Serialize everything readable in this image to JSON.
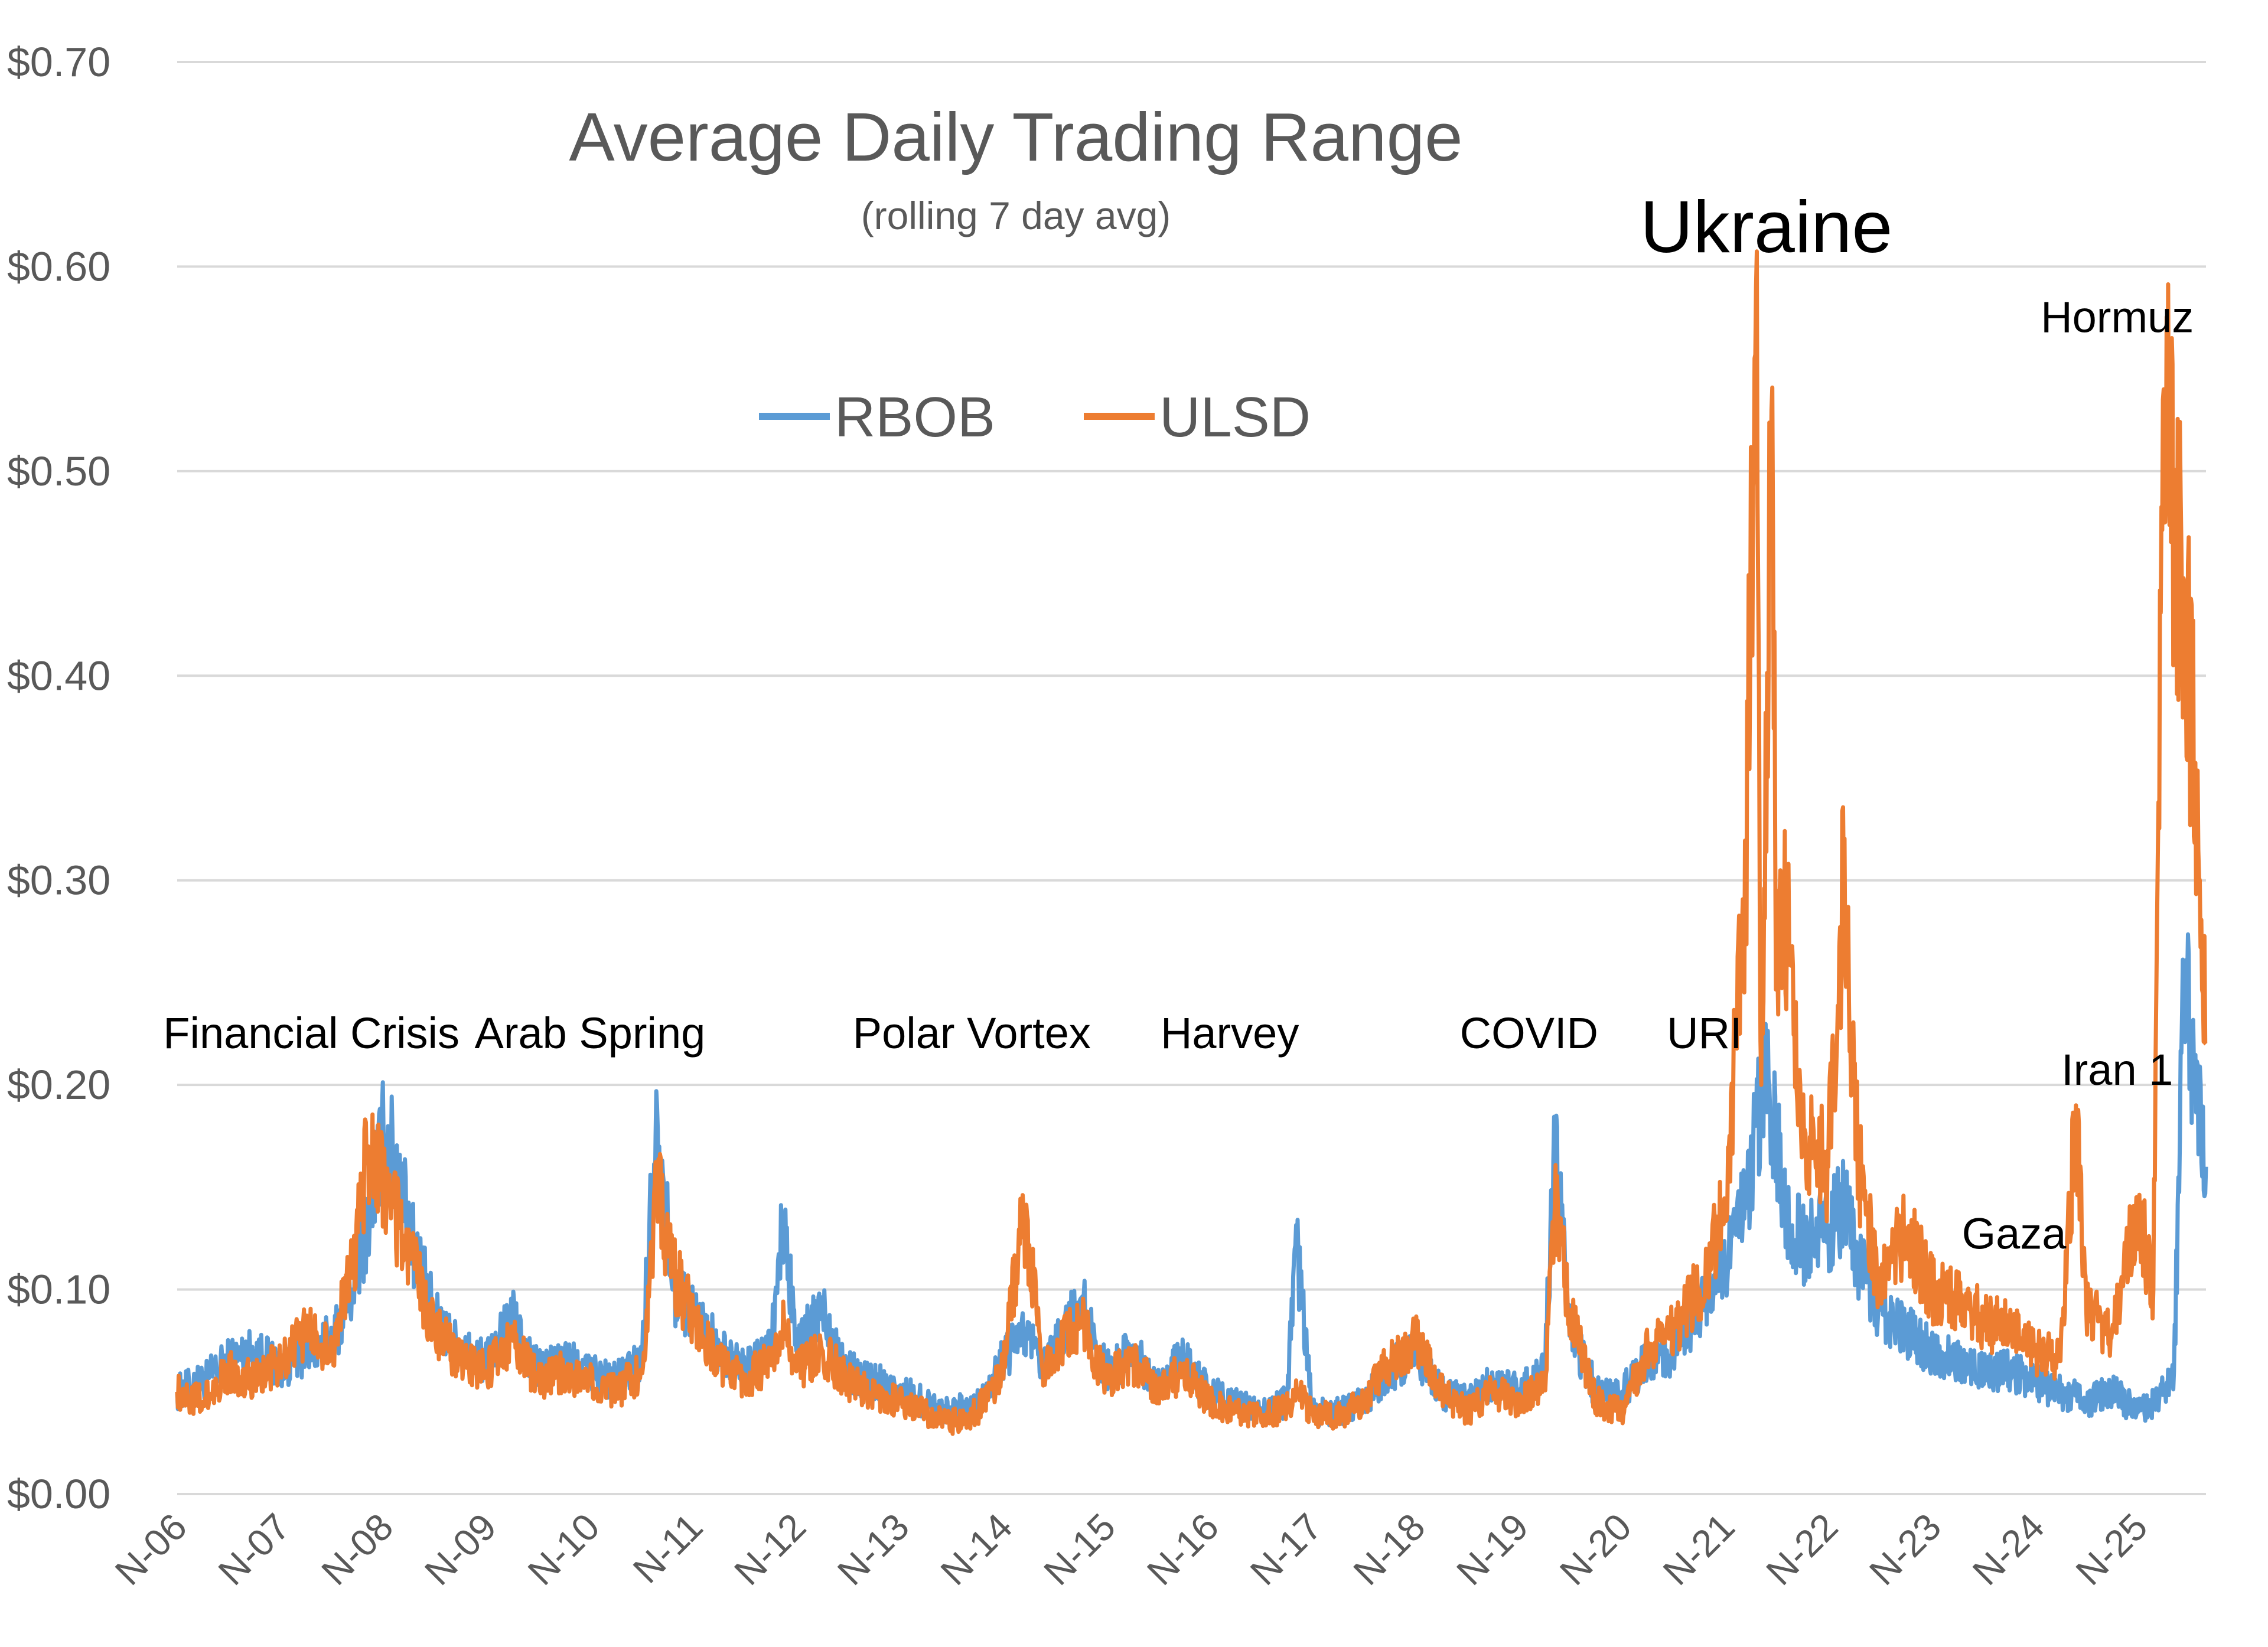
{
  "chart_data": {
    "type": "line",
    "title": "Average Daily Trading Range",
    "subtitle": "(rolling 7 day avg)",
    "ylim": [
      0,
      0.7
    ],
    "yticks": [
      0,
      0.1,
      0.2,
      0.3,
      0.4,
      0.5,
      0.6,
      0.7
    ],
    "ytick_labels": [
      "$0.00",
      "$0.10",
      "$0.20",
      "$0.30",
      "$0.40",
      "$0.50",
      "$0.60",
      "$0.70"
    ],
    "xlim": [
      2006.0,
      2025.66
    ],
    "xtick_labels": [
      "N-06",
      "N-07",
      "N-08",
      "N-09",
      "N-10",
      "N-11",
      "N-12",
      "N-13",
      "N-14",
      "N-15",
      "N-16",
      "N-17",
      "N-18",
      "N-19",
      "N-20",
      "N-21",
      "N-22",
      "N-23",
      "N-24",
      "N-25"
    ],
    "grid": true,
    "legend_placement": "top-center",
    "series": [
      {
        "name": "RBOB",
        "color": "#5b9bd5",
        "x": [
          2006.0,
          2006.25,
          2006.5,
          2006.75,
          2007.0,
          2007.25,
          2007.5,
          2007.7,
          2007.85,
          2008.0,
          2008.15,
          2008.3,
          2008.5,
          2008.75,
          2009.0,
          2009.25,
          2009.5,
          2009.75,
          2010.0,
          2010.25,
          2010.5,
          2010.65,
          2010.8,
          2011.0,
          2011.25,
          2011.5,
          2011.75,
          2011.88,
          2012.0,
          2012.25,
          2012.5,
          2012.75,
          2013.0,
          2013.25,
          2013.5,
          2013.75,
          2014.0,
          2014.2,
          2014.4,
          2014.75,
          2015.0,
          2015.25,
          2015.5,
          2015.75,
          2016.0,
          2016.25,
          2016.5,
          2016.75,
          2016.85,
          2017.0,
          2017.25,
          2017.5,
          2017.75,
          2018.0,
          2018.25,
          2018.5,
          2018.75,
          2019.0,
          2019.25,
          2019.35,
          2019.5,
          2019.75,
          2020.0,
          2020.25,
          2020.5,
          2020.75,
          2021.0,
          2021.2,
          2021.3,
          2021.4,
          2021.5,
          2021.6,
          2021.75,
          2022.0,
          2022.15,
          2022.3,
          2022.5,
          2022.75,
          2023.0,
          2023.25,
          2023.5,
          2023.75,
          2024.0,
          2024.25,
          2024.5,
          2024.75,
          2025.0,
          2025.15,
          2025.25,
          2025.35,
          2025.45,
          2025.55,
          2025.66
        ],
        "values": [
          0.05,
          0.055,
          0.065,
          0.07,
          0.062,
          0.07,
          0.075,
          0.1,
          0.135,
          0.175,
          0.16,
          0.12,
          0.085,
          0.07,
          0.065,
          0.085,
          0.06,
          0.065,
          0.06,
          0.055,
          0.065,
          0.19,
          0.1,
          0.09,
          0.07,
          0.06,
          0.07,
          0.135,
          0.07,
          0.09,
          0.06,
          0.055,
          0.05,
          0.045,
          0.04,
          0.045,
          0.065,
          0.08,
          0.06,
          0.095,
          0.06,
          0.07,
          0.055,
          0.065,
          0.05,
          0.045,
          0.04,
          0.045,
          0.12,
          0.04,
          0.04,
          0.045,
          0.06,
          0.07,
          0.05,
          0.045,
          0.055,
          0.05,
          0.06,
          0.17,
          0.08,
          0.05,
          0.05,
          0.065,
          0.07,
          0.09,
          0.11,
          0.14,
          0.18,
          0.2,
          0.17,
          0.14,
          0.12,
          0.13,
          0.14,
          0.11,
          0.09,
          0.08,
          0.07,
          0.065,
          0.06,
          0.06,
          0.055,
          0.05,
          0.045,
          0.05,
          0.04,
          0.045,
          0.05,
          0.06,
          0.26,
          0.2,
          0.16
        ]
      },
      {
        "name": "ULSD",
        "color": "#ed7d31",
        "x": [
          2006.0,
          2006.25,
          2006.5,
          2006.75,
          2007.0,
          2007.25,
          2007.5,
          2007.7,
          2007.85,
          2008.0,
          2008.15,
          2008.3,
          2008.5,
          2008.75,
          2009.0,
          2009.25,
          2009.5,
          2009.75,
          2010.0,
          2010.25,
          2010.5,
          2010.65,
          2010.8,
          2011.0,
          2011.25,
          2011.5,
          2011.75,
          2011.88,
          2012.0,
          2012.25,
          2012.5,
          2012.75,
          2013.0,
          2013.25,
          2013.5,
          2013.75,
          2014.0,
          2014.2,
          2014.4,
          2014.75,
          2015.0,
          2015.25,
          2015.5,
          2015.75,
          2016.0,
          2016.25,
          2016.5,
          2016.75,
          2016.85,
          2017.0,
          2017.25,
          2017.5,
          2017.75,
          2018.0,
          2018.25,
          2018.5,
          2018.75,
          2019.0,
          2019.25,
          2019.35,
          2019.5,
          2019.75,
          2020.0,
          2020.25,
          2020.5,
          2020.75,
          2021.0,
          2021.2,
          2021.3,
          2021.35,
          2021.45,
          2021.5,
          2021.6,
          2021.75,
          2022.0,
          2022.15,
          2022.3,
          2022.5,
          2022.75,
          2023.0,
          2023.25,
          2023.5,
          2023.75,
          2024.0,
          2024.25,
          2024.4,
          2024.5,
          2024.75,
          2025.0,
          2025.15,
          2025.25,
          2025.3,
          2025.4,
          2025.5,
          2025.6,
          2025.66
        ],
        "values": [
          0.05,
          0.045,
          0.06,
          0.055,
          0.065,
          0.08,
          0.07,
          0.11,
          0.17,
          0.15,
          0.13,
          0.11,
          0.08,
          0.065,
          0.06,
          0.075,
          0.055,
          0.06,
          0.055,
          0.05,
          0.06,
          0.15,
          0.11,
          0.085,
          0.065,
          0.055,
          0.065,
          0.085,
          0.06,
          0.07,
          0.055,
          0.05,
          0.045,
          0.04,
          0.035,
          0.04,
          0.06,
          0.14,
          0.06,
          0.085,
          0.055,
          0.065,
          0.05,
          0.06,
          0.045,
          0.04,
          0.038,
          0.042,
          0.05,
          0.04,
          0.038,
          0.045,
          0.065,
          0.075,
          0.05,
          0.04,
          0.05,
          0.045,
          0.055,
          0.14,
          0.09,
          0.045,
          0.04,
          0.07,
          0.08,
          0.1,
          0.14,
          0.3,
          0.59,
          0.2,
          0.53,
          0.25,
          0.29,
          0.17,
          0.16,
          0.3,
          0.16,
          0.1,
          0.13,
          0.1,
          0.095,
          0.085,
          0.08,
          0.07,
          0.065,
          0.19,
          0.09,
          0.08,
          0.14,
          0.1,
          0.54,
          0.51,
          0.45,
          0.4,
          0.3,
          0.22
        ]
      }
    ],
    "annotations": [
      {
        "text": "Financial Crisis",
        "x": 2007.3,
        "y": 0.218,
        "size": "normal"
      },
      {
        "text": "Arab Spring",
        "x": 2010.0,
        "y": 0.218,
        "size": "normal"
      },
      {
        "text": "Polar Vortex",
        "x": 2013.7,
        "y": 0.218,
        "size": "normal"
      },
      {
        "text": "Harvey",
        "x": 2016.2,
        "y": 0.218,
        "size": "normal"
      },
      {
        "text": "COVID",
        "x": 2019.1,
        "y": 0.218,
        "size": "normal"
      },
      {
        "text": "URI",
        "x": 2020.8,
        "y": 0.218,
        "size": "normal"
      },
      {
        "text": "Ukraine",
        "x": 2021.4,
        "y": 0.607,
        "size": "big"
      },
      {
        "text": "Hormuz",
        "x": 2024.8,
        "y": 0.568,
        "size": "normal"
      },
      {
        "text": "Iran 1",
        "x": 2024.8,
        "y": 0.2,
        "size": "normal"
      },
      {
        "text": "Gaza",
        "x": 2023.8,
        "y": 0.12,
        "size": "normal"
      }
    ]
  }
}
